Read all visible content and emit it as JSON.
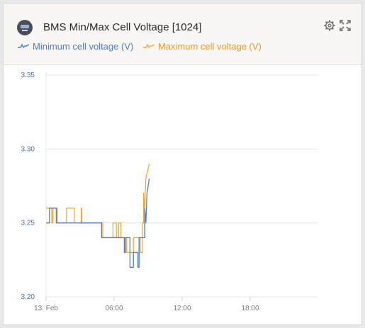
{
  "panel": {
    "title": "BMS Min/Max Cell Voltage [1024]",
    "icons": [
      "device-icon",
      "gear-icon",
      "expand-icon"
    ]
  },
  "chart_data": {
    "type": "line",
    "title": "BMS Min/Max Cell Voltage [1024]",
    "xlabel": "",
    "ylabel": "",
    "x_axis": "time (hours since 13 Feb 00:00)",
    "x_ticks": [
      "13. Feb",
      "06:00",
      "12:00",
      "18:00"
    ],
    "x_tick_values": [
      0,
      6,
      12,
      18
    ],
    "xlim": [
      0,
      24
    ],
    "y_ticks": [
      "3.20",
      "3.25",
      "3.30",
      "3.35"
    ],
    "y_tick_values": [
      3.2,
      3.25,
      3.3,
      3.35
    ],
    "ylim": [
      3.2,
      3.35
    ],
    "grid": true,
    "legend_position": "top-left",
    "series": [
      {
        "name": "Minimum cell voltage (V)",
        "color": "#4f7dc6",
        "points": [
          [
            0.0,
            3.25
          ],
          [
            0.3,
            3.25
          ],
          [
            0.3,
            3.26
          ],
          [
            0.9,
            3.26
          ],
          [
            0.9,
            3.25
          ],
          [
            4.9,
            3.25
          ],
          [
            4.9,
            3.24
          ],
          [
            6.9,
            3.24
          ],
          [
            6.9,
            3.23
          ],
          [
            7.0,
            3.23
          ],
          [
            7.0,
            3.24
          ],
          [
            7.4,
            3.24
          ],
          [
            7.4,
            3.22
          ],
          [
            7.7,
            3.22
          ],
          [
            7.7,
            3.23
          ],
          [
            8.1,
            3.23
          ],
          [
            8.1,
            3.22
          ],
          [
            8.2,
            3.22
          ],
          [
            8.2,
            3.24
          ],
          [
            8.7,
            3.24
          ],
          [
            8.7,
            3.26
          ],
          [
            8.8,
            3.25
          ],
          [
            8.9,
            3.27
          ],
          [
            9.1,
            3.28
          ]
        ]
      },
      {
        "name": "Maximum cell voltage (V)",
        "color": "#f0ad3c",
        "points": [
          [
            0.0,
            3.26
          ],
          [
            0.5,
            3.26
          ],
          [
            0.5,
            3.25
          ],
          [
            0.6,
            3.25
          ],
          [
            0.6,
            3.26
          ],
          [
            1.0,
            3.26
          ],
          [
            1.0,
            3.25
          ],
          [
            1.8,
            3.25
          ],
          [
            1.8,
            3.26
          ],
          [
            2.5,
            3.26
          ],
          [
            2.5,
            3.25
          ],
          [
            3.1,
            3.25
          ],
          [
            3.1,
            3.26
          ],
          [
            3.15,
            3.26
          ],
          [
            3.15,
            3.25
          ],
          [
            5.0,
            3.25
          ],
          [
            5.0,
            3.24
          ],
          [
            5.9,
            3.24
          ],
          [
            5.9,
            3.25
          ],
          [
            6.2,
            3.25
          ],
          [
            6.2,
            3.24
          ],
          [
            6.4,
            3.24
          ],
          [
            6.4,
            3.25
          ],
          [
            6.6,
            3.25
          ],
          [
            6.6,
            3.24
          ],
          [
            7.1,
            3.24
          ],
          [
            7.1,
            3.23
          ],
          [
            7.7,
            3.23
          ],
          [
            7.7,
            3.24
          ],
          [
            8.3,
            3.24
          ],
          [
            8.3,
            3.23
          ],
          [
            8.5,
            3.23
          ],
          [
            8.5,
            3.25
          ],
          [
            8.6,
            3.25
          ],
          [
            8.6,
            3.27
          ],
          [
            8.7,
            3.26
          ],
          [
            8.8,
            3.28
          ],
          [
            9.1,
            3.29
          ]
        ]
      }
    ]
  }
}
